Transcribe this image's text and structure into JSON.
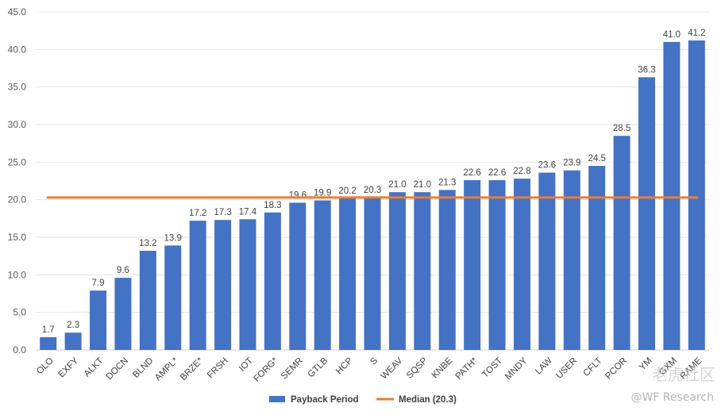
{
  "chart_data": {
    "type": "bar",
    "title": "",
    "xlabel": "",
    "ylabel": "",
    "ylim": [
      0,
      45
    ],
    "yticks": [
      "0.0",
      "5.0",
      "10.0",
      "15.0",
      "20.0",
      "25.0",
      "30.0",
      "35.0",
      "40.0",
      "45.0"
    ],
    "grid": true,
    "legend_position": "bottom-center",
    "categories": [
      "OLO",
      "EXFY",
      "ALKT",
      "DOCN",
      "BLND",
      "AMPL*",
      "BRZE*",
      "FRSH",
      "IOT",
      "FORG*",
      "SEMR",
      "GTLB",
      "HCP",
      "S",
      "WEAV",
      "SQSP",
      "KNBE",
      "PATH*",
      "TOST",
      "MNDY",
      "LAW",
      "USER",
      "CFLT",
      "PCOR",
      "YM",
      "GXM",
      "RAME"
    ],
    "series": [
      {
        "name": "Payback Period",
        "type": "bar",
        "color": "#4472C4",
        "values": [
          1.7,
          2.3,
          7.9,
          9.6,
          13.2,
          13.9,
          17.2,
          17.3,
          17.4,
          18.3,
          19.6,
          19.9,
          20.2,
          20.3,
          21.0,
          21.0,
          21.3,
          22.6,
          22.6,
          22.8,
          23.6,
          23.9,
          24.5,
          28.5,
          36.3,
          41.0,
          41.2
        ],
        "labels": [
          "1.7",
          "2.3",
          "7.9",
          "9.6",
          "13.2",
          "13.9",
          "17.2",
          "17.3",
          "17.4",
          "18.3",
          "19.6",
          "19.9",
          "20.2",
          "20.3",
          "21.0",
          "21.0",
          "21.3",
          "22.6",
          "22.6",
          "22.8",
          "23.6",
          "23.9",
          "24.5",
          "28.5",
          "36.3",
          "41.0",
          "41.2"
        ]
      },
      {
        "name": "Median (20.3)",
        "type": "line",
        "color": "#ED7D31",
        "value": 20.3
      }
    ]
  },
  "watermark": {
    "brand_cn": "老虎社区",
    "credit": "@WF Research"
  }
}
